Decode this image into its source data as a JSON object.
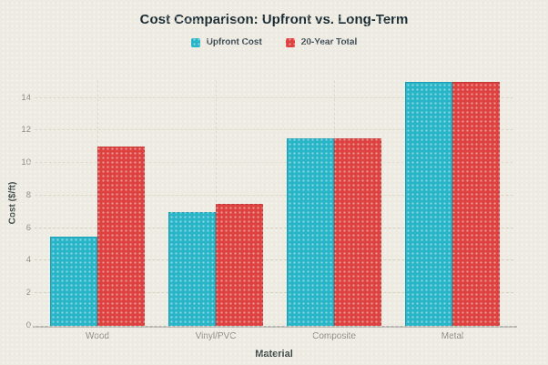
{
  "chart_data": {
    "type": "bar",
    "title": "Cost Comparison: Upfront vs. Long-Term",
    "xlabel": "Material",
    "ylabel": "Cost ($/ft)",
    "categories": [
      "Wood",
      "Vinyl/PVC",
      "Composite",
      "Metal"
    ],
    "series": [
      {
        "name": "Upfront Cost",
        "color": "#29b5c8",
        "border_color": "#1e9fb3",
        "values": [
          5.5,
          7,
          11.5,
          15
        ]
      },
      {
        "name": "20-Year Total",
        "color": "#de4240",
        "border_color": "#c63836",
        "values": [
          11,
          7.5,
          11.5,
          15
        ]
      }
    ],
    "ylim": [
      0,
      15.1
    ],
    "yticks": [
      0,
      2,
      4,
      6,
      8,
      10,
      12,
      14
    ],
    "grid": true,
    "legend_position": "top"
  }
}
